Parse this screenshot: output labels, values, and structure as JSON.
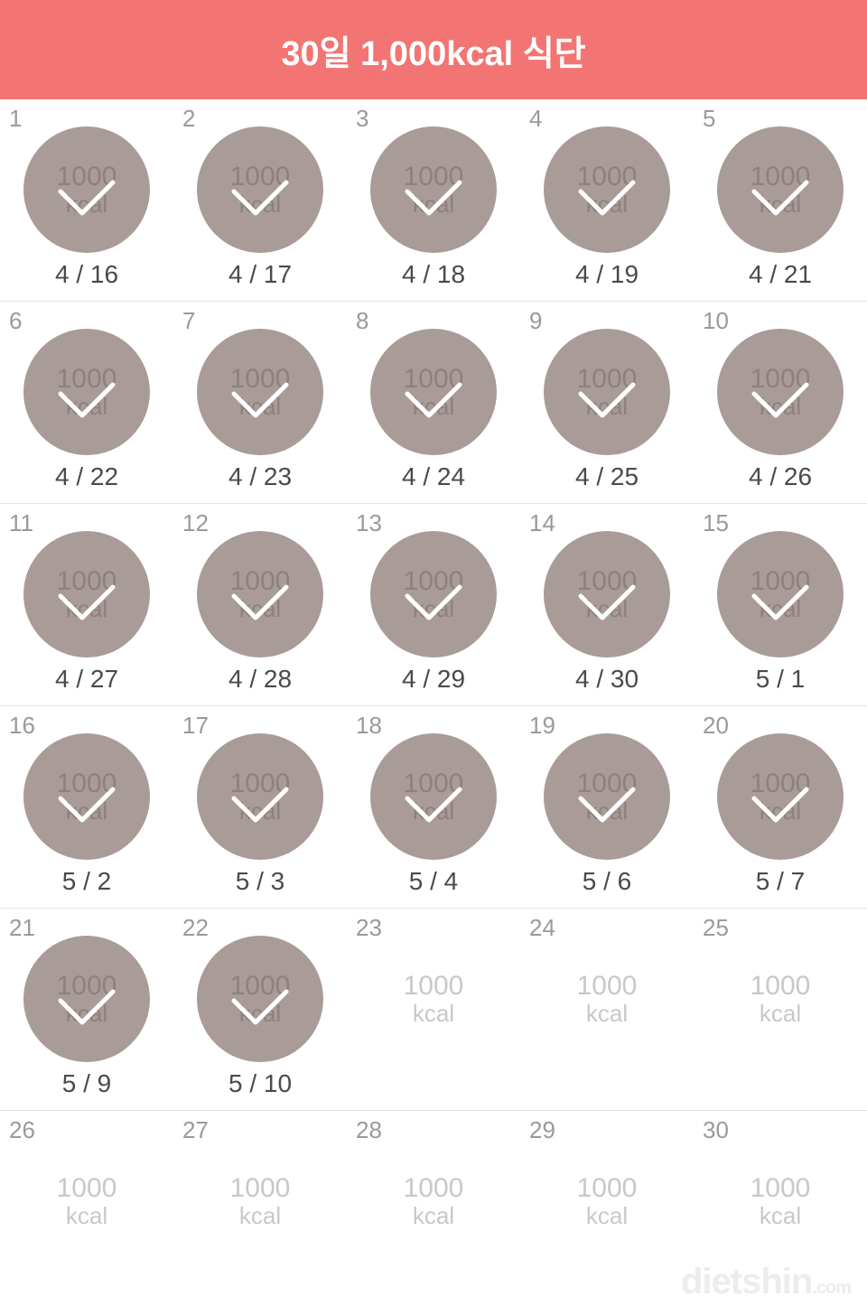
{
  "header": {
    "title": "30일 1,000kcal 식단",
    "bg_color": "#f27573",
    "text_color": "#ffffff"
  },
  "badge_style": {
    "circle_color": "#a99b97",
    "circle_text_color": "#8e807c",
    "check_color": "#ffffff",
    "plain_text_color": "#c8c8c8",
    "daynum_color": "#9a9a9a",
    "date_color": "#4a4a4a"
  },
  "kcal_label": {
    "num": "1000",
    "unit": "kcal"
  },
  "days": [
    {
      "n": "1",
      "done": true,
      "date": "4 / 16"
    },
    {
      "n": "2",
      "done": true,
      "date": "4 / 17"
    },
    {
      "n": "3",
      "done": true,
      "date": "4 / 18"
    },
    {
      "n": "4",
      "done": true,
      "date": "4 / 19"
    },
    {
      "n": "5",
      "done": true,
      "date": "4 / 21"
    },
    {
      "n": "6",
      "done": true,
      "date": "4 / 22"
    },
    {
      "n": "7",
      "done": true,
      "date": "4 / 23"
    },
    {
      "n": "8",
      "done": true,
      "date": "4 / 24"
    },
    {
      "n": "9",
      "done": true,
      "date": "4 / 25"
    },
    {
      "n": "10",
      "done": true,
      "date": "4 / 26"
    },
    {
      "n": "11",
      "done": true,
      "date": "4 / 27"
    },
    {
      "n": "12",
      "done": true,
      "date": "4 / 28"
    },
    {
      "n": "13",
      "done": true,
      "date": "4 / 29"
    },
    {
      "n": "14",
      "done": true,
      "date": "4 / 30"
    },
    {
      "n": "15",
      "done": true,
      "date": "5 / 1"
    },
    {
      "n": "16",
      "done": true,
      "date": "5 / 2"
    },
    {
      "n": "17",
      "done": true,
      "date": "5 / 3"
    },
    {
      "n": "18",
      "done": true,
      "date": "5 / 4"
    },
    {
      "n": "19",
      "done": true,
      "date": "5 / 6"
    },
    {
      "n": "20",
      "done": true,
      "date": "5 / 7"
    },
    {
      "n": "21",
      "done": true,
      "date": "5 / 9"
    },
    {
      "n": "22",
      "done": true,
      "date": "5 / 10"
    },
    {
      "n": "23",
      "done": false,
      "date": ""
    },
    {
      "n": "24",
      "done": false,
      "date": ""
    },
    {
      "n": "25",
      "done": false,
      "date": ""
    },
    {
      "n": "26",
      "done": false,
      "date": ""
    },
    {
      "n": "27",
      "done": false,
      "date": ""
    },
    {
      "n": "28",
      "done": false,
      "date": ""
    },
    {
      "n": "29",
      "done": false,
      "date": ""
    },
    {
      "n": "30",
      "done": false,
      "date": ""
    }
  ],
  "watermark": {
    "text": "dietshin",
    "suffix": ".com"
  }
}
